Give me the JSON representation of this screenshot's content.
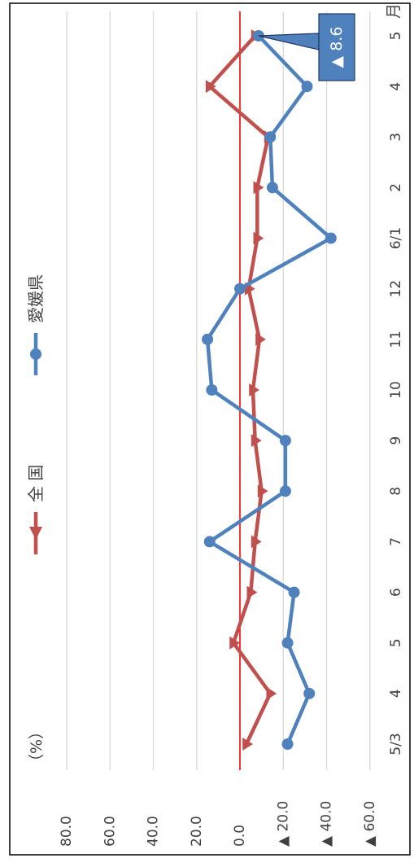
{
  "chart_data": {
    "type": "line",
    "orientation": "rotated-90-clockwise",
    "ylabel": "（%）",
    "xlabel_unit": "月",
    "categories": [
      "5/3",
      "4",
      "5",
      "6",
      "7",
      "8",
      "9",
      "10",
      "11",
      "12",
      "6/1",
      "2",
      "3",
      "4",
      "5"
    ],
    "ylim": [
      -60,
      80
    ],
    "yticks": [
      80,
      60,
      40,
      20,
      0,
      -20,
      -40,
      -60
    ],
    "ytick_labels": [
      "80.0",
      "60.0",
      "40.0",
      "20.0",
      "0.0",
      "▲ 20.0",
      "▲ 40.0",
      "▲ 60.0"
    ],
    "grid": true,
    "zero_line_color": "#ff0000",
    "legend_position": "top",
    "series": [
      {
        "name": "全 国",
        "color": "#c0504d",
        "marker": "triangle",
        "values": [
          -3,
          -14,
          3,
          -5,
          -7,
          -10,
          -7,
          -6,
          -9,
          -4,
          -8,
          -8,
          -13,
          14,
          -7
        ]
      },
      {
        "name": "愛媛県",
        "color": "#4f81bd",
        "marker": "circle",
        "values": [
          -22,
          -32,
          -22,
          -25,
          14,
          -21,
          -21,
          13,
          15,
          0,
          -42,
          -15,
          -14,
          -31,
          -8.6
        ]
      }
    ],
    "annotation": {
      "text": "▲ 8.6",
      "series_index": 1,
      "category_index": 14
    }
  }
}
